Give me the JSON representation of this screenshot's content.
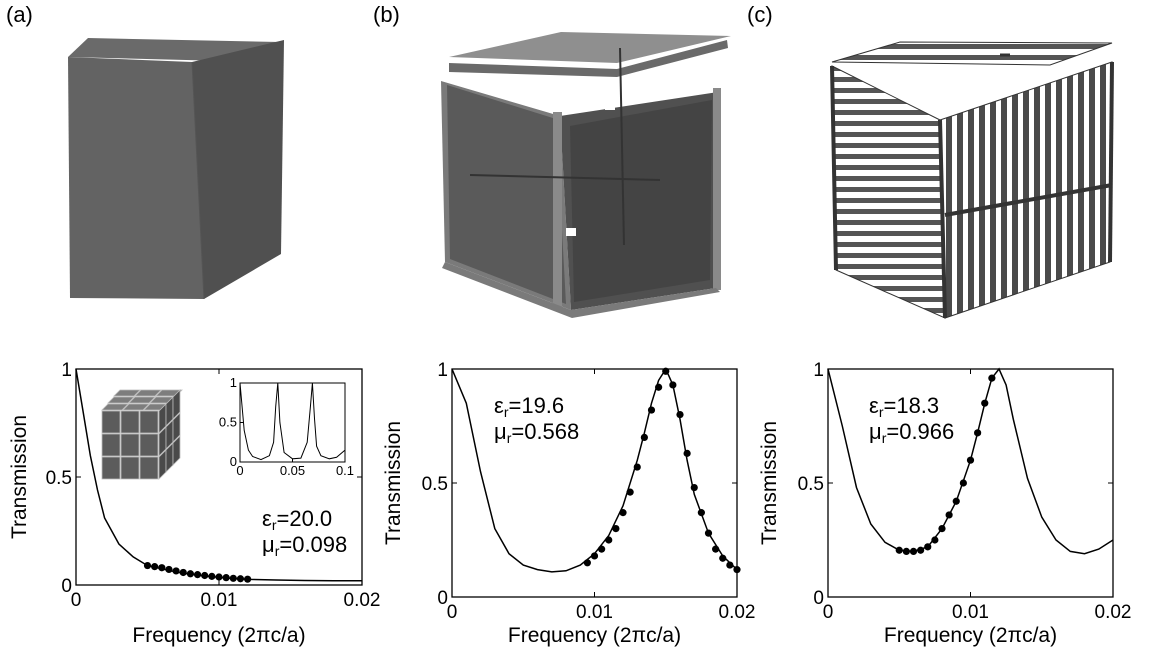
{
  "panel_labels": [
    "(a)",
    "(b)",
    "(c)"
  ],
  "colors": {
    "line": "#000000",
    "marker": "#000000",
    "cube_face": "#5e5e5e",
    "frame": "#7a7a7a",
    "wire": "#555555"
  },
  "cube_images": [
    "solid-cube",
    "thin-shell-cube",
    "rod-lattice-cube"
  ],
  "chart_data": [
    {
      "type": "line",
      "xlabel": "Frequency (2πc/a)",
      "ylabel": "Transmission",
      "xlim": [
        0,
        0.02
      ],
      "ylim": [
        0,
        1
      ],
      "xticks": [
        "0",
        "0.01",
        "0.02"
      ],
      "yticks": [
        "0",
        "0.5",
        "1"
      ],
      "annotation": {
        "eps": "ε",
        "eps_sub": "r",
        "eps_val": "=20.0",
        "mu": "μ",
        "mu_sub": "r",
        "mu_val": "=0.098"
      },
      "series": [
        {
          "role": "simulation-curve",
          "x": [
            0,
            0.0005,
            0.001,
            0.0015,
            0.002,
            0.003,
            0.004,
            0.005,
            0.006,
            0.007,
            0.008,
            0.009,
            0.01,
            0.011,
            0.012,
            0.014,
            0.016,
            0.018,
            0.02
          ],
          "y": [
            1,
            0.8,
            0.6,
            0.44,
            0.31,
            0.19,
            0.13,
            0.09,
            0.075,
            0.06,
            0.05,
            0.042,
            0.035,
            0.03,
            0.026,
            0.023,
            0.021,
            0.02,
            0.02
          ]
        },
        {
          "role": "fit-points",
          "x": [
            0.005,
            0.0055,
            0.006,
            0.0065,
            0.007,
            0.0075,
            0.008,
            0.0085,
            0.009,
            0.0095,
            0.01,
            0.0105,
            0.011,
            0.0115,
            0.012
          ],
          "y": [
            0.09,
            0.085,
            0.08,
            0.072,
            0.065,
            0.058,
            0.052,
            0.048,
            0.044,
            0.04,
            0.037,
            0.034,
            0.031,
            0.029,
            0.027
          ]
        }
      ],
      "inset": {
        "type": "line",
        "xlim": [
          0,
          0.1
        ],
        "ylim": [
          0,
          1
        ],
        "xticks": [
          "0",
          "0.05",
          "0.1"
        ],
        "yticks": [
          "0",
          "0.5",
          "1"
        ],
        "series": [
          {
            "role": "inset-curve",
            "x": [
              0,
              0.004,
              0.008,
              0.012,
              0.02,
              0.028,
              0.032,
              0.034,
              0.036,
              0.038,
              0.042,
              0.05,
              0.058,
              0.064,
              0.067,
              0.069,
              0.071,
              0.073,
              0.077,
              0.085,
              0.092,
              0.1
            ],
            "y": [
              1,
              0.4,
              0.15,
              0.07,
              0.03,
              0.08,
              0.25,
              0.7,
              1,
              0.5,
              0.12,
              0.04,
              0.05,
              0.25,
              0.7,
              1,
              0.55,
              0.2,
              0.08,
              0.04,
              0.06,
              0.15
            ]
          }
        ]
      }
    },
    {
      "type": "line",
      "xlabel": "Frequency (2πc/a)",
      "ylabel": "Transmission",
      "xlim": [
        0,
        0.02
      ],
      "ylim": [
        0,
        1
      ],
      "xticks": [
        "0",
        "0.01",
        "0.02"
      ],
      "yticks": [
        "0",
        "0.5",
        "1"
      ],
      "annotation": {
        "eps": "ε",
        "eps_sub": "r",
        "eps_val": "=19.6",
        "mu": "μ",
        "mu_sub": "r",
        "mu_val": "=0.568"
      },
      "series": [
        {
          "role": "simulation-curve",
          "x": [
            0,
            0.001,
            0.002,
            0.003,
            0.004,
            0.005,
            0.006,
            0.007,
            0.008,
            0.009,
            0.01,
            0.011,
            0.012,
            0.013,
            0.0135,
            0.014,
            0.0145,
            0.015,
            0.0155,
            0.016,
            0.0165,
            0.017,
            0.018,
            0.019,
            0.02
          ],
          "y": [
            1,
            0.85,
            0.55,
            0.3,
            0.19,
            0.14,
            0.12,
            0.11,
            0.115,
            0.14,
            0.19,
            0.27,
            0.4,
            0.6,
            0.72,
            0.85,
            0.95,
            1.0,
            0.93,
            0.78,
            0.6,
            0.45,
            0.28,
            0.18,
            0.12
          ]
        },
        {
          "role": "fit-points",
          "x": [
            0.0095,
            0.01,
            0.0105,
            0.011,
            0.0115,
            0.012,
            0.0125,
            0.013,
            0.0135,
            0.014,
            0.0145,
            0.015,
            0.0155,
            0.016,
            0.0165,
            0.017,
            0.0175,
            0.018,
            0.0185,
            0.019,
            0.0195,
            0.02
          ],
          "y": [
            0.15,
            0.18,
            0.21,
            0.25,
            0.3,
            0.37,
            0.46,
            0.57,
            0.7,
            0.82,
            0.92,
            0.99,
            0.93,
            0.8,
            0.63,
            0.48,
            0.37,
            0.28,
            0.21,
            0.17,
            0.14,
            0.12
          ]
        }
      ]
    },
    {
      "type": "line",
      "xlabel": "Frequency (2πc/a)",
      "ylabel": "Transmission",
      "xlim": [
        0,
        0.02
      ],
      "ylim": [
        0,
        1
      ],
      "xticks": [
        "0",
        "0.01",
        "0.02"
      ],
      "yticks": [
        "0",
        "0.5",
        "1"
      ],
      "annotation": {
        "eps": "ε",
        "eps_sub": "r",
        "eps_val": "=18.3",
        "mu": "μ",
        "mu_sub": "r",
        "mu_val": "=0.966"
      },
      "series": [
        {
          "role": "simulation-curve",
          "x": [
            0,
            0.001,
            0.002,
            0.003,
            0.004,
            0.005,
            0.006,
            0.007,
            0.008,
            0.009,
            0.01,
            0.0105,
            0.011,
            0.0115,
            0.012,
            0.0125,
            0.013,
            0.014,
            0.015,
            0.016,
            0.017,
            0.018,
            0.019,
            0.02
          ],
          "y": [
            1,
            0.75,
            0.48,
            0.32,
            0.24,
            0.205,
            0.2,
            0.22,
            0.3,
            0.42,
            0.6,
            0.72,
            0.85,
            0.96,
            1.0,
            0.93,
            0.78,
            0.52,
            0.35,
            0.25,
            0.2,
            0.19,
            0.21,
            0.25
          ]
        },
        {
          "role": "fit-points",
          "x": [
            0.005,
            0.0055,
            0.006,
            0.0065,
            0.007,
            0.0075,
            0.008,
            0.0085,
            0.009,
            0.0095,
            0.01,
            0.0105,
            0.011,
            0.0115
          ],
          "y": [
            0.205,
            0.2,
            0.2,
            0.205,
            0.22,
            0.25,
            0.3,
            0.36,
            0.42,
            0.5,
            0.6,
            0.72,
            0.85,
            0.96
          ]
        }
      ]
    }
  ]
}
